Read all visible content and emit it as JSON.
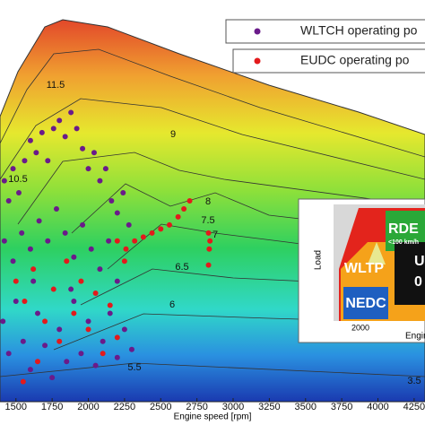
{
  "chart_data": {
    "type": "scatter",
    "x_label": "Engine speed [rpm]",
    "xlim": [
      1390,
      4325
    ],
    "xticks": [
      1500,
      1750,
      2000,
      2250,
      2500,
      2750,
      3000,
      3250,
      3500,
      3750,
      4000,
      4250
    ],
    "ylim": [
      0,
      100
    ],
    "series": [
      {
        "name": "WLTCH operating po",
        "color": "#6a1b8a",
        "x": [
          1420,
          1450,
          1480,
          1520,
          1560,
          1600,
          1640,
          1680,
          1720,
          1760,
          1800,
          1840,
          1880,
          1920,
          1960,
          2000,
          2040,
          2080,
          2120,
          2160,
          2200,
          2240,
          2280,
          1420,
          1480,
          1540,
          1600,
          1660,
          1720,
          1780,
          1840,
          1900,
          1960,
          2020,
          2080,
          2140,
          2200,
          1410,
          1450,
          1500,
          1550,
          1600,
          1650,
          1700,
          1750,
          1800,
          1850,
          1900,
          1950,
          2000,
          2050,
          2100,
          2150,
          2200,
          2250,
          2300,
          1880,
          1620
        ],
        "values": [
          55,
          50,
          58,
          52,
          60,
          65,
          62,
          67,
          60,
          68,
          70,
          66,
          72,
          68,
          63,
          58,
          62,
          55,
          58,
          50,
          47,
          52,
          44,
          40,
          35,
          42,
          38,
          45,
          40,
          48,
          42,
          36,
          44,
          38,
          33,
          40,
          30,
          20,
          12,
          25,
          15,
          8,
          22,
          14,
          6,
          18,
          10,
          25,
          12,
          20,
          9,
          15,
          22,
          11,
          18,
          13,
          28,
          30
        ]
      },
      {
        "name": "EUDC operating po",
        "color": "#e31a1c",
        "x": [
          2200,
          2260,
          2320,
          2380,
          2440,
          2500,
          2560,
          2620,
          2660,
          2700,
          2830,
          2835,
          2830,
          2840,
          1500,
          1560,
          1620,
          1700,
          1760,
          1800,
          1850,
          1900,
          1950,
          2000,
          2050,
          2100,
          2150,
          2200,
          2250,
          1650,
          1550
        ],
        "values": [
          40,
          38,
          40,
          41,
          42,
          43,
          44,
          46,
          48,
          50,
          42,
          38,
          34,
          40,
          30,
          25,
          33,
          20,
          28,
          15,
          35,
          22,
          30,
          18,
          27,
          12,
          24,
          16,
          35,
          10,
          5
        ]
      }
    ],
    "annotations": [
      "11.5",
      "10.5",
      "9",
      "8",
      "7.5",
      "7",
      "6.5",
      "6",
      "5.5",
      "3.5"
    ],
    "inset": {
      "y_label": "Load",
      "x_label": "Engine",
      "xtick": "2000",
      "regions": [
        "NEDC",
        "WLTP",
        "RDE",
        "<100 km/h",
        "U",
        "0"
      ]
    }
  }
}
